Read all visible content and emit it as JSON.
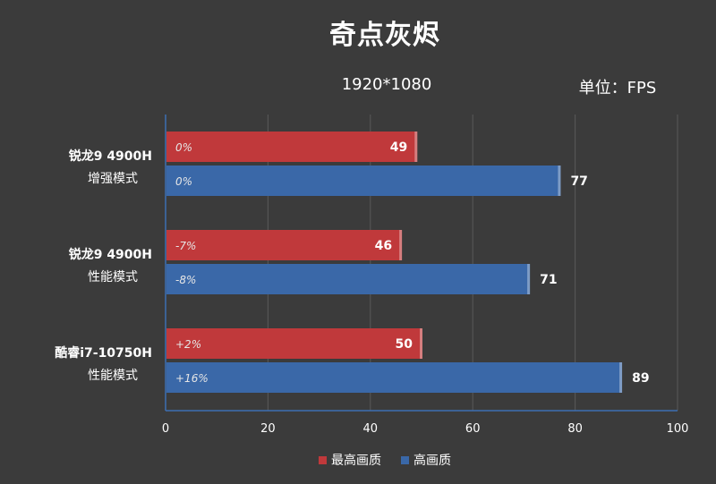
{
  "chart_data": {
    "type": "bar",
    "orientation": "horizontal",
    "title": "奇点灰烬",
    "subtitle": "1920*1080",
    "unit": "单位：FPS",
    "xlim": [
      0,
      100
    ],
    "xticks": [
      "0",
      "20",
      "40",
      "60",
      "80",
      "100"
    ],
    "grid": true,
    "legend_position": "bottom",
    "categories": [
      {
        "line1": "锐龙9 4900H",
        "line2": "增强模式"
      },
      {
        "line1": "锐龙9 4900H",
        "line2": "性能模式"
      },
      {
        "line1": "酷睿i7-10750H",
        "line2": "性能模式"
      }
    ],
    "series": [
      {
        "name": "最高画质",
        "color": "#c0393b",
        "values": [
          49,
          46,
          50
        ],
        "pct_labels": [
          "0%",
          "-7%",
          "+2%"
        ]
      },
      {
        "name": "高画质",
        "color": "#3a68a8",
        "values": [
          77,
          71,
          89
        ],
        "pct_labels": [
          "0%",
          "-8%",
          "+16%"
        ]
      }
    ]
  }
}
